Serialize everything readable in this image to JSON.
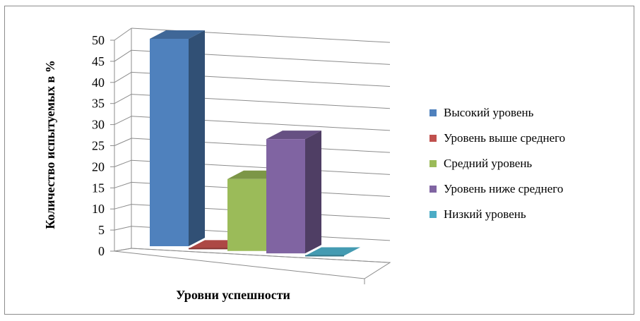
{
  "chart_data": {
    "type": "bar",
    "categories": [
      "Высокий уровень",
      "Уровень выше среднего",
      "Средний уровень",
      "Уровень ниже среднего",
      "Низкий уровень"
    ],
    "values": [
      49,
      0,
      17,
      27,
      0
    ],
    "colors": [
      "#4f81bd",
      "#c0504d",
      "#9bbb59",
      "#8064a2",
      "#4bacc6"
    ],
    "ylim": [
      0,
      50
    ],
    "yticks": [
      "0",
      "5",
      "10",
      "15",
      "20",
      "25",
      "30",
      "35",
      "40",
      "45",
      "50"
    ],
    "xlabel": "Уровни успешности",
    "ylabel": "Количество испытуемых в %",
    "legend_position": "right",
    "grid": true,
    "style": "3d-column"
  }
}
